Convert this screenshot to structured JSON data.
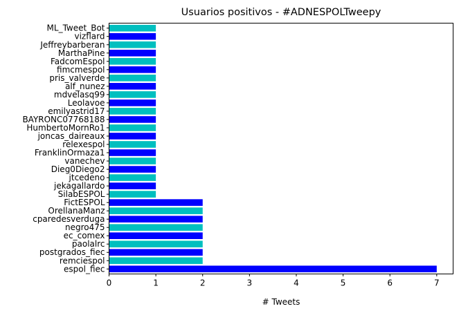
{
  "chart_data": {
    "type": "bar",
    "orientation": "horizontal",
    "title": "Usuarios positivos - #ADNESPOLTweepy",
    "xlabel": "# Tweets",
    "ylabel": "",
    "xlim": [
      0,
      7.35
    ],
    "xticks": [
      "0",
      "1",
      "2",
      "3",
      "4",
      "5",
      "6",
      "7"
    ],
    "grid": false,
    "colors": [
      "#0000ff",
      "#00bfbf"
    ],
    "categories": [
      "espol_fiec",
      "remciespol",
      "postgrados_fiec",
      "paolalrc",
      "ec_comex",
      "negro475",
      "cparedesverduga",
      "OrellanaManz",
      "FictESPOL",
      "SilabESPOL",
      "jekagallardo",
      "jtcedeno",
      "Dieg0Diego2",
      "vanechev",
      "FranklinOrmaza1",
      "relexespol",
      "joncas_daireaux",
      "HumbertoMornRo1",
      "BAYRONC07768188",
      "emilyastrid17",
      "Leolavoe",
      "mdvelasq99",
      "alf_nunez",
      "pris_valverde",
      "fimcmespol",
      "FadcomEspol",
      "MarthaPine",
      "Jeffreybarberan",
      "vizflard",
      "ML_Tweet_Bot"
    ],
    "values": [
      7,
      2,
      2,
      2,
      2,
      2,
      2,
      2,
      2,
      1,
      1,
      1,
      1,
      1,
      1,
      1,
      1,
      1,
      1,
      1,
      1,
      1,
      1,
      1,
      1,
      1,
      1,
      1,
      1,
      1
    ]
  }
}
